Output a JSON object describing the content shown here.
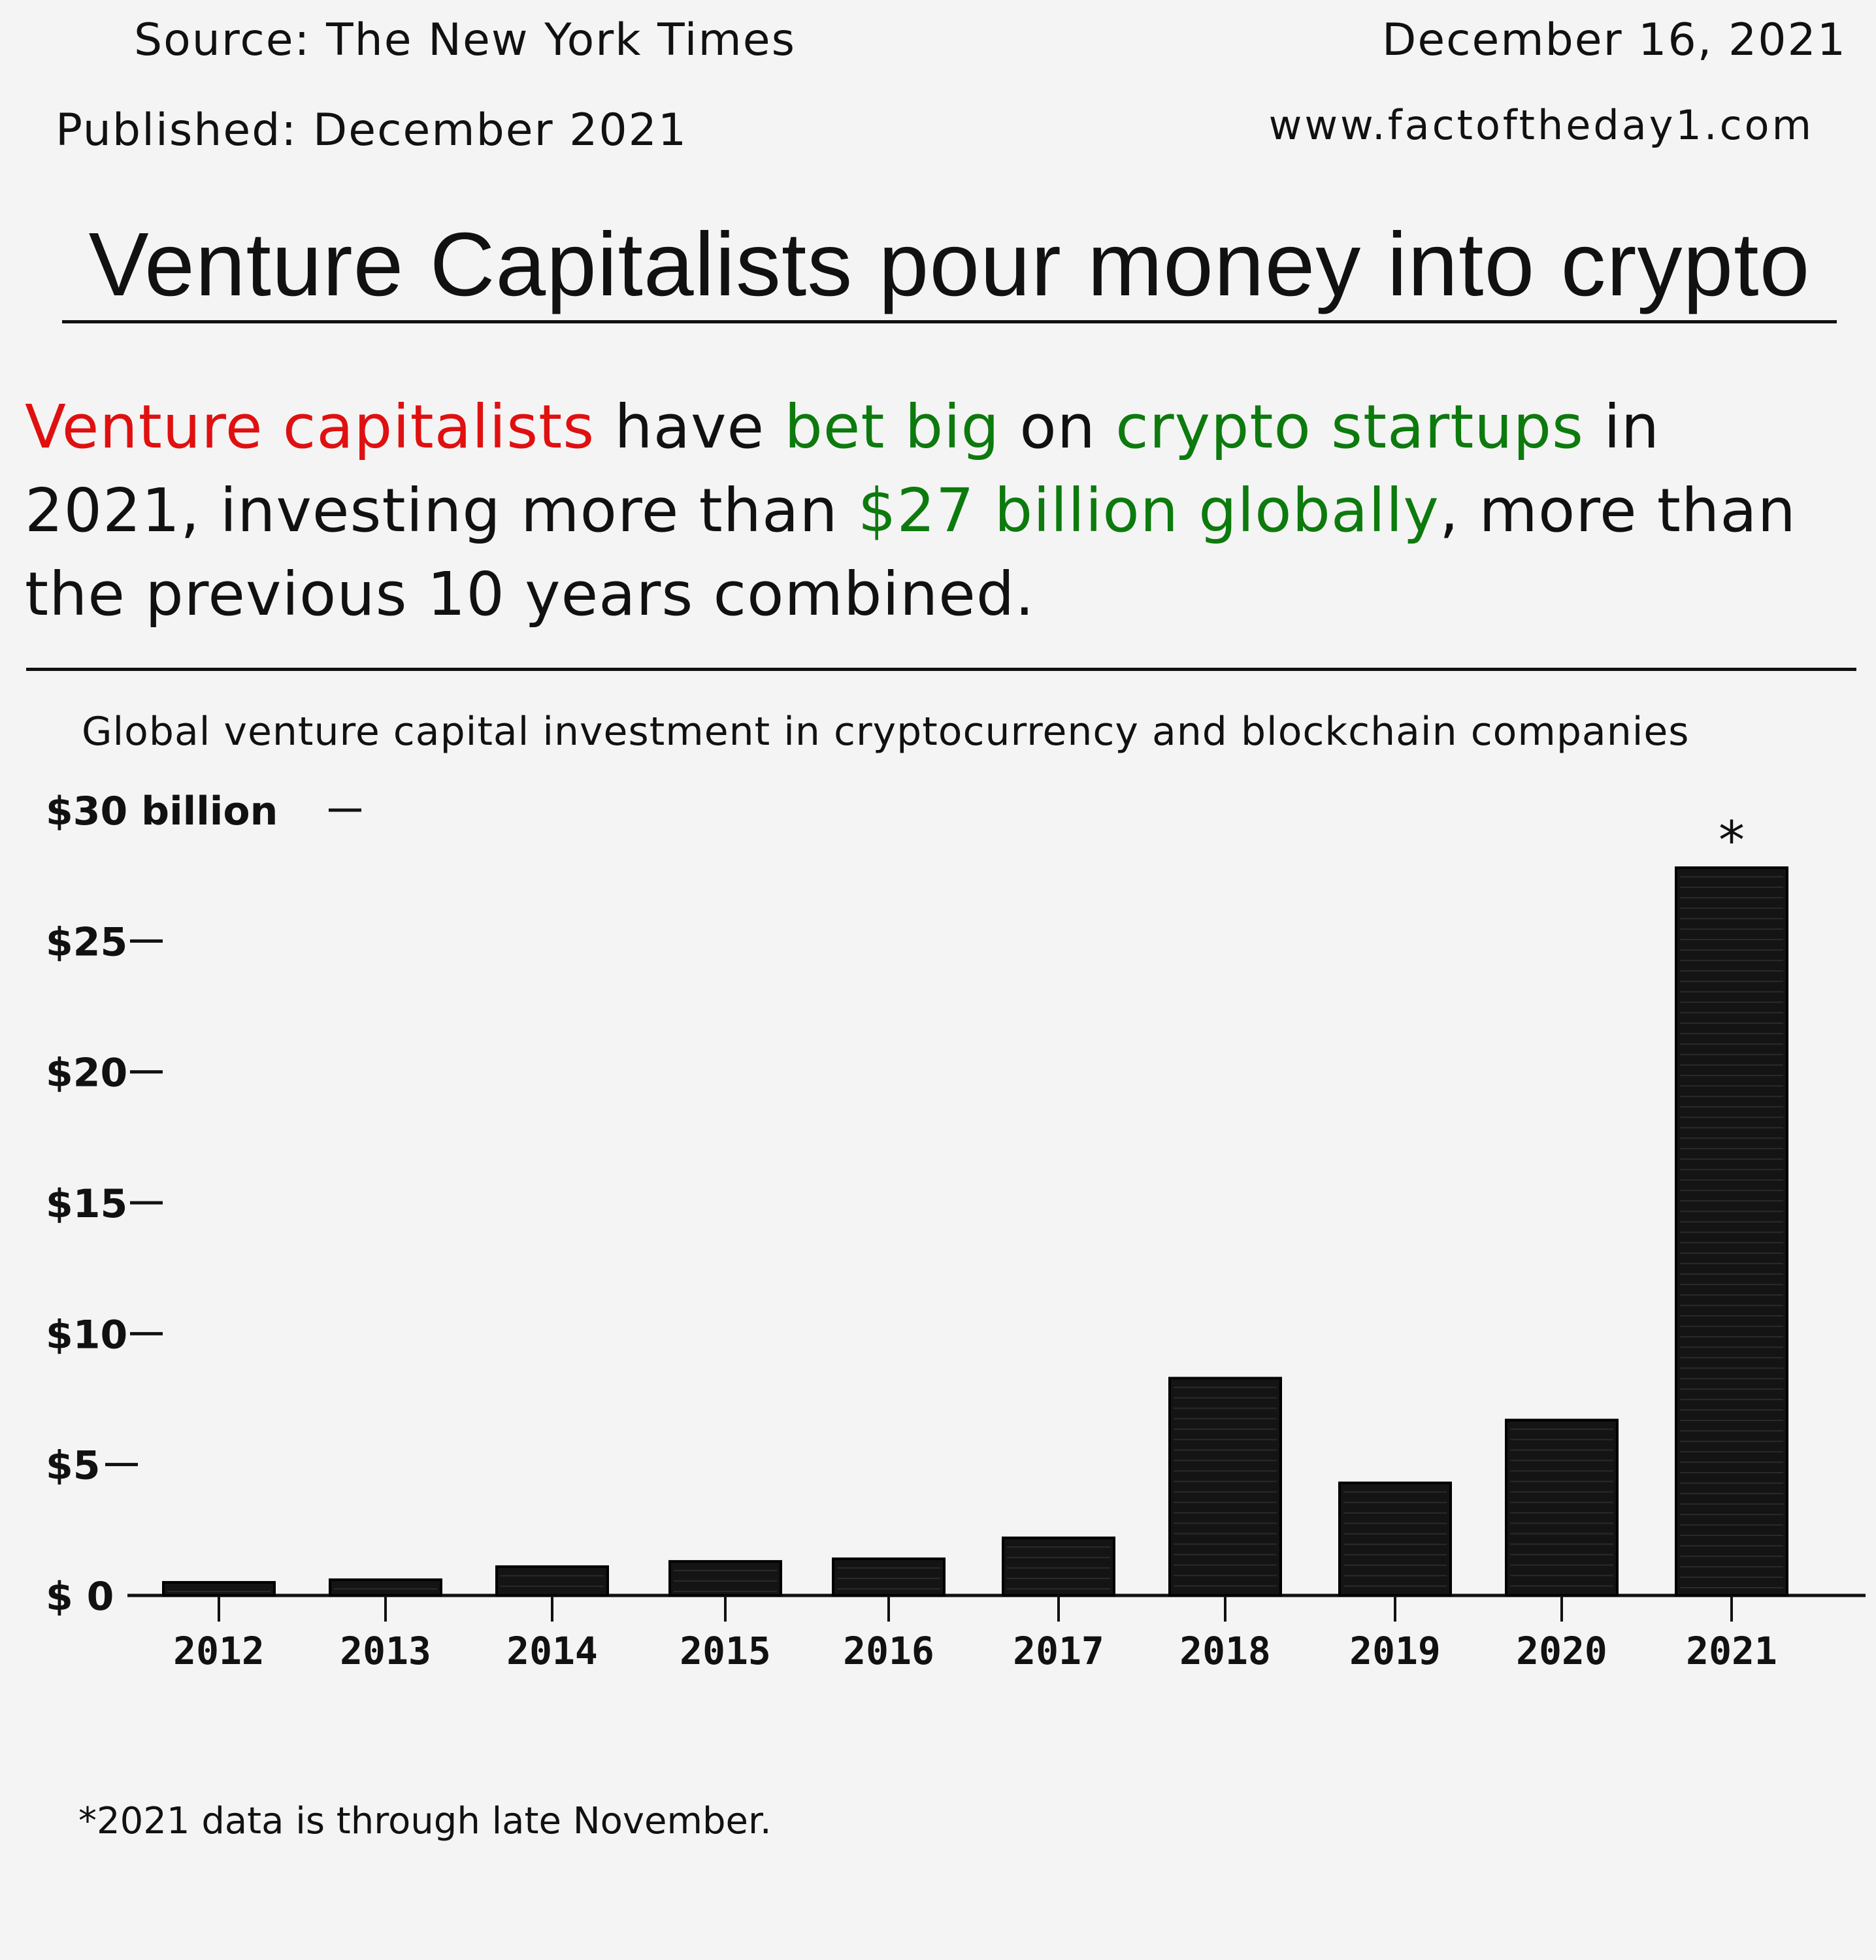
{
  "header": {
    "source": "Source: The New York Times",
    "published": "Published: December 2021",
    "date": "December 16, 2021",
    "url": "www.factoftheday1.com"
  },
  "headline": "Venture Capitalists pour money into crypto",
  "summary": {
    "part1": "Venture capitalists",
    "part2": " have ",
    "part3": "bet big",
    "part4": " on ",
    "part5": "crypto startups",
    "part6": " in 2021, investing more than ",
    "part7": "$27 billion globally",
    "part8": ", more than the previous 10 years combined."
  },
  "colors": {
    "highlight_red": "#e01010",
    "highlight_green": "#0d7a0d",
    "bar": "#141414"
  },
  "footnote": "*2021 data is through late November.",
  "chart_data": {
    "type": "bar",
    "title": "Global venture capital investment in cryptocurrency and blockchain companies",
    "categories": [
      "2012",
      "2013",
      "2014",
      "2015",
      "2016",
      "2017",
      "2018",
      "2019",
      "2020",
      "2021"
    ],
    "values": [
      0.5,
      0.6,
      1.1,
      1.3,
      1.4,
      2.2,
      8.3,
      4.3,
      6.7,
      27.8
    ],
    "ylim": [
      0,
      30
    ],
    "yticks": [
      0,
      5,
      10,
      15,
      20,
      25,
      30
    ],
    "ytick_labels": [
      "$ 0",
      "$5",
      "$10",
      "$15",
      "$20",
      "$25",
      "$30 billion"
    ],
    "annotations": [
      {
        "category": "2021",
        "text": "*"
      }
    ],
    "grid": false,
    "legend": "none"
  }
}
